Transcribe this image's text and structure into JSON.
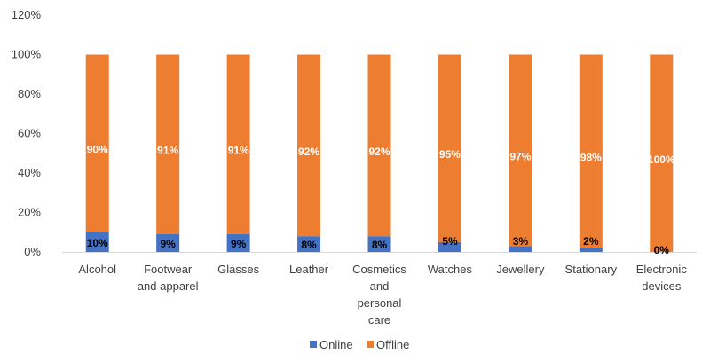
{
  "chart_data": {
    "type": "bar",
    "stacked": true,
    "categories": [
      [
        "Alcohol"
      ],
      [
        "Footwear",
        "and apparel"
      ],
      [
        "Glasses"
      ],
      [
        "Leather"
      ],
      [
        "Cosmetics",
        "and",
        "personal",
        "care"
      ],
      [
        "Watches"
      ],
      [
        "Jewellery"
      ],
      [
        "Stationary"
      ],
      [
        "Electronic",
        "devices"
      ]
    ],
    "series": [
      {
        "name": "Online",
        "color": "#4472C4",
        "label_color": "#000000",
        "values": [
          10,
          9,
          9,
          8,
          8,
          5,
          3,
          2,
          0
        ],
        "labels": [
          "10%",
          "9%",
          "9%",
          "8%",
          "8%",
          "5%",
          "3%",
          "2%",
          "0%"
        ]
      },
      {
        "name": "Offline",
        "color": "#ED7D31",
        "label_color": "#ffffff",
        "values": [
          90,
          91,
          91,
          92,
          92,
          95,
          97,
          98,
          100
        ],
        "labels": [
          "90%",
          "91%",
          "91%",
          "92%",
          "92%",
          "95%",
          "97%",
          "98%",
          "100%"
        ]
      }
    ],
    "y_ticks": [
      "0%",
      "20%",
      "40%",
      "60%",
      "80%",
      "100%",
      "120%"
    ],
    "ylim": [
      0,
      120
    ],
    "grid": false,
    "legend_position": "bottom"
  }
}
